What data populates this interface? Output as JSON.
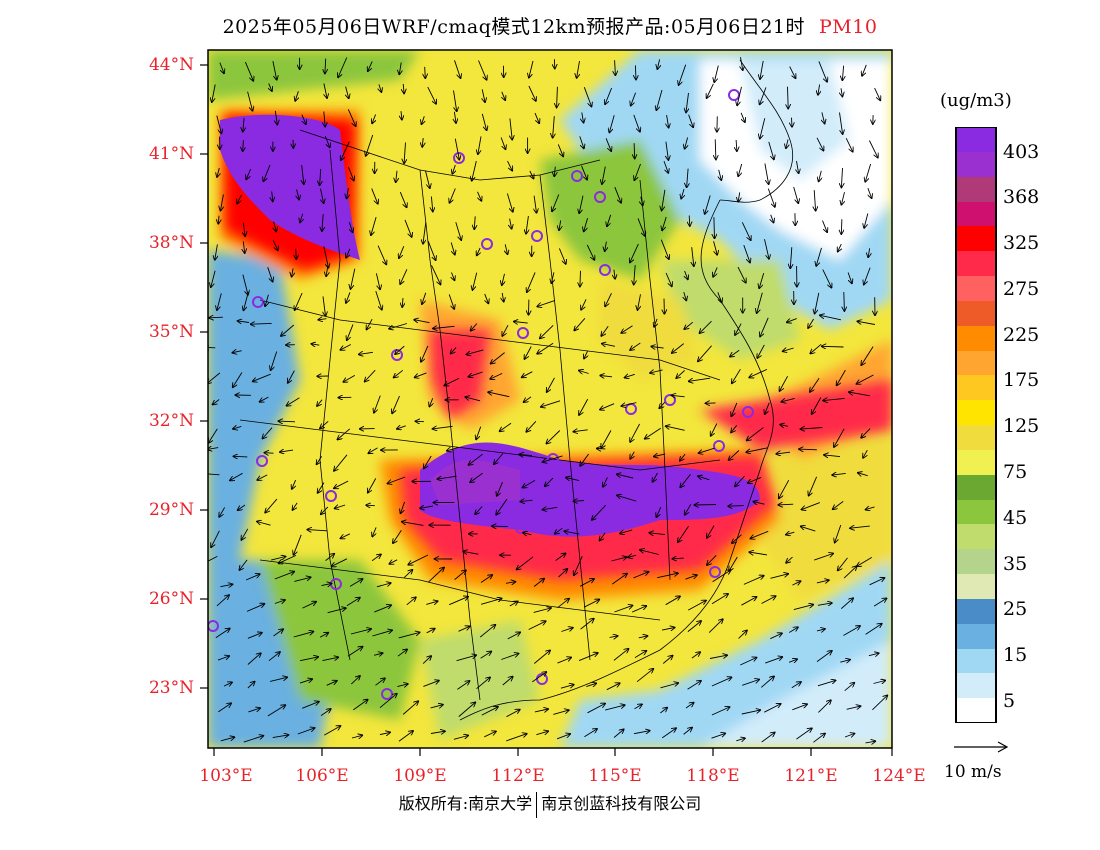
{
  "title": {
    "main": "2025年05月06日WRF/cmaq模式12km预报产品:05月06日21时",
    "pollutant": "PM10"
  },
  "latitude_labels": [
    "44°N",
    "41°N",
    "38°N",
    "35°N",
    "32°N",
    "29°N",
    "26°N",
    "23°N"
  ],
  "longitude_labels": [
    "103°E",
    "106°E",
    "109°E",
    "112°E",
    "115°E",
    "118°E",
    "121°E",
    "124°E"
  ],
  "colorbar": {
    "unit": "(ug/m3)",
    "labels": [
      "403",
      "368",
      "325",
      "275",
      "225",
      "175",
      "125",
      "75",
      "45",
      "35",
      "25",
      "15",
      "5"
    ],
    "colors_top_to_bottom": [
      "#8a2be2",
      "#9b30d0",
      "#b03a78",
      "#d0106e",
      "#ff0000",
      "#ff2a4a",
      "#ff6060",
      "#ee5a28",
      "#ff8c00",
      "#ffa530",
      "#ffc820",
      "#ffe400",
      "#f0dc3c",
      "#f0f050",
      "#6aa832",
      "#8cc63c",
      "#c0dc6c",
      "#b4d48c",
      "#e0e8b4",
      "#4a8cc8",
      "#6ab0e0",
      "#a0d8f4",
      "#d2ecfa",
      "#ffffff"
    ]
  },
  "wind_reference": {
    "label": "10 m/s"
  },
  "copyright": {
    "left": "版权所有:南京大学",
    "right": "南京创蓝科技有限公司"
  },
  "map": {
    "region": "China",
    "forecast_time": "05月06日21时",
    "main_feature": "PM10 plume over central/southern China and Inner Mongolia"
  }
}
